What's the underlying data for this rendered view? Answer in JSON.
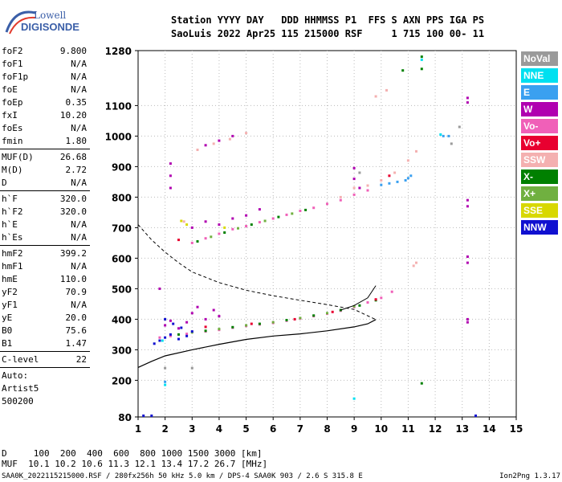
{
  "logo": {
    "brand_top": "Lowell",
    "brand_bottom": "DIGISONDE",
    "colors": {
      "accent": "#3b5fa8"
    }
  },
  "header": {
    "line1": "Station YYYY DAY   DDD HHMMSS P1  FFS S AXN PPS IGA PS",
    "line2": "SaoLuis 2022 Apr25 115 215000 RSF     1 715 100 00- 11"
  },
  "params": {
    "group1": [
      {
        "k": "foF2",
        "v": "9.800"
      },
      {
        "k": "foF1",
        "v": "N/A"
      },
      {
        "k": "foF1p",
        "v": "N/A"
      },
      {
        "k": "foE",
        "v": "N/A"
      },
      {
        "k": "foEp",
        "v": "0.35"
      },
      {
        "k": "fxI",
        "v": "10.20"
      },
      {
        "k": "foEs",
        "v": "N/A"
      },
      {
        "k": "fmin",
        "v": "1.80"
      }
    ],
    "group2": [
      {
        "k": "MUF(D)",
        "v": "26.68"
      },
      {
        "k": "M(D)",
        "v": "2.72"
      },
      {
        "k": "D",
        "v": "N/A"
      }
    ],
    "group3": [
      {
        "k": "h`F",
        "v": "320.0"
      },
      {
        "k": "h`F2",
        "v": "320.0"
      },
      {
        "k": "h`E",
        "v": "N/A"
      },
      {
        "k": "h`Es",
        "v": "N/A"
      }
    ],
    "group4": [
      {
        "k": "hmF2",
        "v": "399.2"
      },
      {
        "k": "hmF1",
        "v": "N/A"
      },
      {
        "k": "hmE",
        "v": "110.0"
      },
      {
        "k": "yF2",
        "v": "70.9"
      },
      {
        "k": "yF1",
        "v": "N/A"
      },
      {
        "k": "yE",
        "v": "20.0"
      },
      {
        "k": "B0",
        "v": "75.6"
      },
      {
        "k": "B1",
        "v": "1.47"
      }
    ],
    "group5": [
      {
        "k": "C-level",
        "v": "22"
      }
    ],
    "auto": [
      "Auto:",
      "Artist5",
      "500200"
    ]
  },
  "legend": [
    {
      "label": "NoVal",
      "color": "#9a9a9a"
    },
    {
      "label": "NNE",
      "color": "#00e0f0"
    },
    {
      "label": "E",
      "color": "#3aa0f0"
    },
    {
      "label": "W",
      "color": "#b000b0"
    },
    {
      "label": "Vo-",
      "color": "#f060b8"
    },
    {
      "label": "Vo+",
      "color": "#e80030"
    },
    {
      "label": "SSW",
      "color": "#f4b0b0"
    },
    {
      "label": "X-",
      "color": "#008000"
    },
    {
      "label": "X+",
      "color": "#70b040"
    },
    {
      "label": "SSE",
      "color": "#d8d800"
    },
    {
      "label": "NNW",
      "color": "#1010d0"
    }
  ],
  "bottom": {
    "line1": "D     100  200  400  600  800 1000 1500 3000 [km]",
    "line2": "MUF  10.1 10.2 10.6 11.3 12.1 13.4 17.2 26.7 [MHz]"
  },
  "footer": {
    "left": "SAA0K_2022115215000.RSF / 280fx256h 50 kHz 5.0 km / DPS-4 SAA0K 903 / 2.6 S 315.8 E",
    "right": "Ion2Png 1.3.17"
  },
  "chart_data": {
    "type": "scatter",
    "xlim": [
      1,
      15
    ],
    "ylim": [
      80,
      1280
    ],
    "x_ticks": [
      1,
      2,
      3,
      4,
      5,
      6,
      7,
      8,
      9,
      10,
      11,
      12,
      13,
      14,
      15
    ],
    "y_ticks": [
      80,
      200,
      300,
      400,
      500,
      600,
      700,
      800,
      900,
      1000,
      1100,
      1280
    ],
    "grid": "dotted",
    "profile_line": [
      [
        1.0,
        242
      ],
      [
        1.5,
        262
      ],
      [
        2.0,
        280
      ],
      [
        3.0,
        300
      ],
      [
        4.0,
        318
      ],
      [
        5.0,
        334
      ],
      [
        6.0,
        345
      ],
      [
        7.0,
        352
      ],
      [
        8.0,
        362
      ],
      [
        9.0,
        375
      ],
      [
        9.5,
        385
      ],
      [
        9.8,
        399
      ]
    ],
    "profile_dashed": [
      [
        1.0,
        710
      ],
      [
        1.5,
        660
      ],
      [
        2.0,
        620
      ],
      [
        2.5,
        585
      ],
      [
        3.0,
        555
      ],
      [
        4.0,
        520
      ],
      [
        5.0,
        495
      ],
      [
        6.0,
        477
      ],
      [
        7.0,
        462
      ],
      [
        8.0,
        448
      ],
      [
        9.0,
        432
      ],
      [
        9.8,
        399
      ]
    ],
    "trace_line": [
      [
        8.5,
        430
      ],
      [
        9.0,
        445
      ],
      [
        9.5,
        470
      ],
      [
        9.8,
        510
      ]
    ],
    "series": [
      {
        "name": "Vo-",
        "color": "#f060b8",
        "points": [
          [
            1.8,
            340
          ],
          [
            2.2,
            345
          ],
          [
            2.8,
            352
          ],
          [
            3.5,
            360
          ],
          [
            4.0,
            365
          ],
          [
            4.5,
            372
          ],
          [
            5.0,
            378
          ],
          [
            5.5,
            383
          ],
          [
            6.0,
            388
          ],
          [
            6.5,
            395
          ],
          [
            7.0,
            402
          ],
          [
            7.5,
            410
          ],
          [
            8.0,
            418
          ],
          [
            8.5,
            428
          ],
          [
            9.0,
            440
          ],
          [
            9.5,
            455
          ],
          [
            10.0,
            470
          ],
          [
            10.4,
            490
          ],
          [
            3.0,
            650
          ],
          [
            3.5,
            665
          ],
          [
            4.0,
            680
          ],
          [
            4.5,
            695
          ],
          [
            5.0,
            705
          ],
          [
            5.5,
            718
          ],
          [
            6.0,
            730
          ],
          [
            6.5,
            742
          ],
          [
            7.0,
            755
          ],
          [
            7.5,
            765
          ],
          [
            8.0,
            778
          ],
          [
            8.5,
            790
          ],
          [
            9.0,
            808
          ],
          [
            9.5,
            822
          ]
        ]
      },
      {
        "name": "X-",
        "color": "#008000",
        "points": [
          [
            2.5,
            350
          ],
          [
            3.5,
            362
          ],
          [
            4.5,
            374
          ],
          [
            5.5,
            385
          ],
          [
            6.5,
            397
          ],
          [
            7.5,
            412
          ],
          [
            8.5,
            430
          ],
          [
            9.2,
            445
          ],
          [
            9.8,
            462
          ],
          [
            3.2,
            655
          ],
          [
            4.2,
            684
          ],
          [
            5.2,
            710
          ],
          [
            6.2,
            735
          ],
          [
            7.2,
            758
          ],
          [
            11.5,
            1260
          ],
          [
            11.5,
            1220
          ],
          [
            11.5,
            190
          ],
          [
            10.8,
            1215
          ]
        ]
      },
      {
        "name": "X+",
        "color": "#70b040",
        "points": [
          [
            3.0,
            357
          ],
          [
            4.0,
            368
          ],
          [
            5.0,
            380
          ],
          [
            6.0,
            390
          ],
          [
            7.0,
            404
          ],
          [
            8.0,
            420
          ],
          [
            9.0,
            442
          ],
          [
            3.7,
            670
          ],
          [
            4.7,
            698
          ],
          [
            5.7,
            722
          ],
          [
            6.7,
            746
          ]
        ]
      },
      {
        "name": "W",
        "color": "#b000b0",
        "points": [
          [
            2.0,
            380
          ],
          [
            2.2,
            395
          ],
          [
            2.5,
            370
          ],
          [
            2.8,
            390
          ],
          [
            3.0,
            420
          ],
          [
            3.2,
            440
          ],
          [
            3.5,
            400
          ],
          [
            3.8,
            430
          ],
          [
            4.0,
            410
          ],
          [
            2.2,
            910
          ],
          [
            2.2,
            870
          ],
          [
            2.2,
            830
          ],
          [
            3.0,
            700
          ],
          [
            3.5,
            720
          ],
          [
            4.0,
            710
          ],
          [
            4.5,
            730
          ],
          [
            5.0,
            740
          ],
          [
            5.5,
            760
          ],
          [
            9.0,
            895
          ],
          [
            9.0,
            860
          ],
          [
            9.2,
            830
          ],
          [
            13.2,
            1125
          ],
          [
            13.2,
            1110
          ],
          [
            13.2,
            790
          ],
          [
            13.2,
            770
          ],
          [
            13.2,
            605
          ],
          [
            13.2,
            585
          ],
          [
            13.2,
            400
          ],
          [
            13.2,
            390
          ],
          [
            3.5,
            970
          ],
          [
            4.0,
            985
          ],
          [
            4.5,
            1000
          ],
          [
            1.8,
            500
          ]
        ]
      },
      {
        "name": "NNW",
        "color": "#1010d0",
        "points": [
          [
            1.6,
            320
          ],
          [
            1.8,
            330
          ],
          [
            2.0,
            340
          ],
          [
            2.2,
            350
          ],
          [
            2.5,
            335
          ],
          [
            2.8,
            345
          ],
          [
            3.0,
            360
          ],
          [
            2.0,
            400
          ],
          [
            2.3,
            385
          ],
          [
            2.6,
            372
          ],
          [
            1.2,
            84
          ],
          [
            1.5,
            84
          ],
          [
            13.5,
            84
          ]
        ]
      },
      {
        "name": "E",
        "color": "#3aa0f0",
        "points": [
          [
            10.0,
            840
          ],
          [
            10.3,
            845
          ],
          [
            10.6,
            850
          ],
          [
            10.9,
            855
          ],
          [
            11.0,
            862
          ],
          [
            11.1,
            870
          ],
          [
            12.3,
            1000
          ],
          [
            12.5,
            1000
          ],
          [
            2.0,
            195
          ]
        ]
      },
      {
        "name": "SSW",
        "color": "#f4b0b0",
        "points": [
          [
            9.0,
            830
          ],
          [
            9.5,
            838
          ],
          [
            10.0,
            855
          ],
          [
            10.5,
            880
          ],
          [
            11.0,
            920
          ],
          [
            11.3,
            950
          ],
          [
            8.5,
            800
          ],
          [
            9.8,
            1130
          ],
          [
            10.2,
            1150
          ],
          [
            11.2,
            575
          ],
          [
            11.3,
            585
          ],
          [
            3.2,
            955
          ],
          [
            3.8,
            975
          ],
          [
            4.4,
            990
          ],
          [
            5.0,
            1010
          ],
          [
            2.7,
            720
          ]
        ]
      },
      {
        "name": "Vo+",
        "color": "#e80030",
        "points": [
          [
            3.5,
            375
          ],
          [
            5.2,
            385
          ],
          [
            6.8,
            400
          ],
          [
            8.2,
            424
          ],
          [
            9.8,
            465
          ],
          [
            2.5,
            660
          ],
          [
            10.3,
            870
          ]
        ]
      },
      {
        "name": "NNE",
        "color": "#00e0f0",
        "points": [
          [
            11.5,
            1250
          ],
          [
            2.0,
            185
          ],
          [
            9.0,
            140
          ],
          [
            1.9,
            330
          ],
          [
            12.2,
            1005
          ]
        ]
      },
      {
        "name": "SSE",
        "color": "#d8d800",
        "points": [
          [
            2.6,
            722
          ],
          [
            2.8,
            710
          ],
          [
            4.2,
            700
          ]
        ]
      },
      {
        "name": "NoVal",
        "color": "#9a9a9a",
        "points": [
          [
            3.0,
            240
          ],
          [
            2.0,
            240
          ],
          [
            9.2,
            880
          ],
          [
            12.6,
            975
          ],
          [
            12.9,
            1030
          ]
        ]
      }
    ]
  }
}
